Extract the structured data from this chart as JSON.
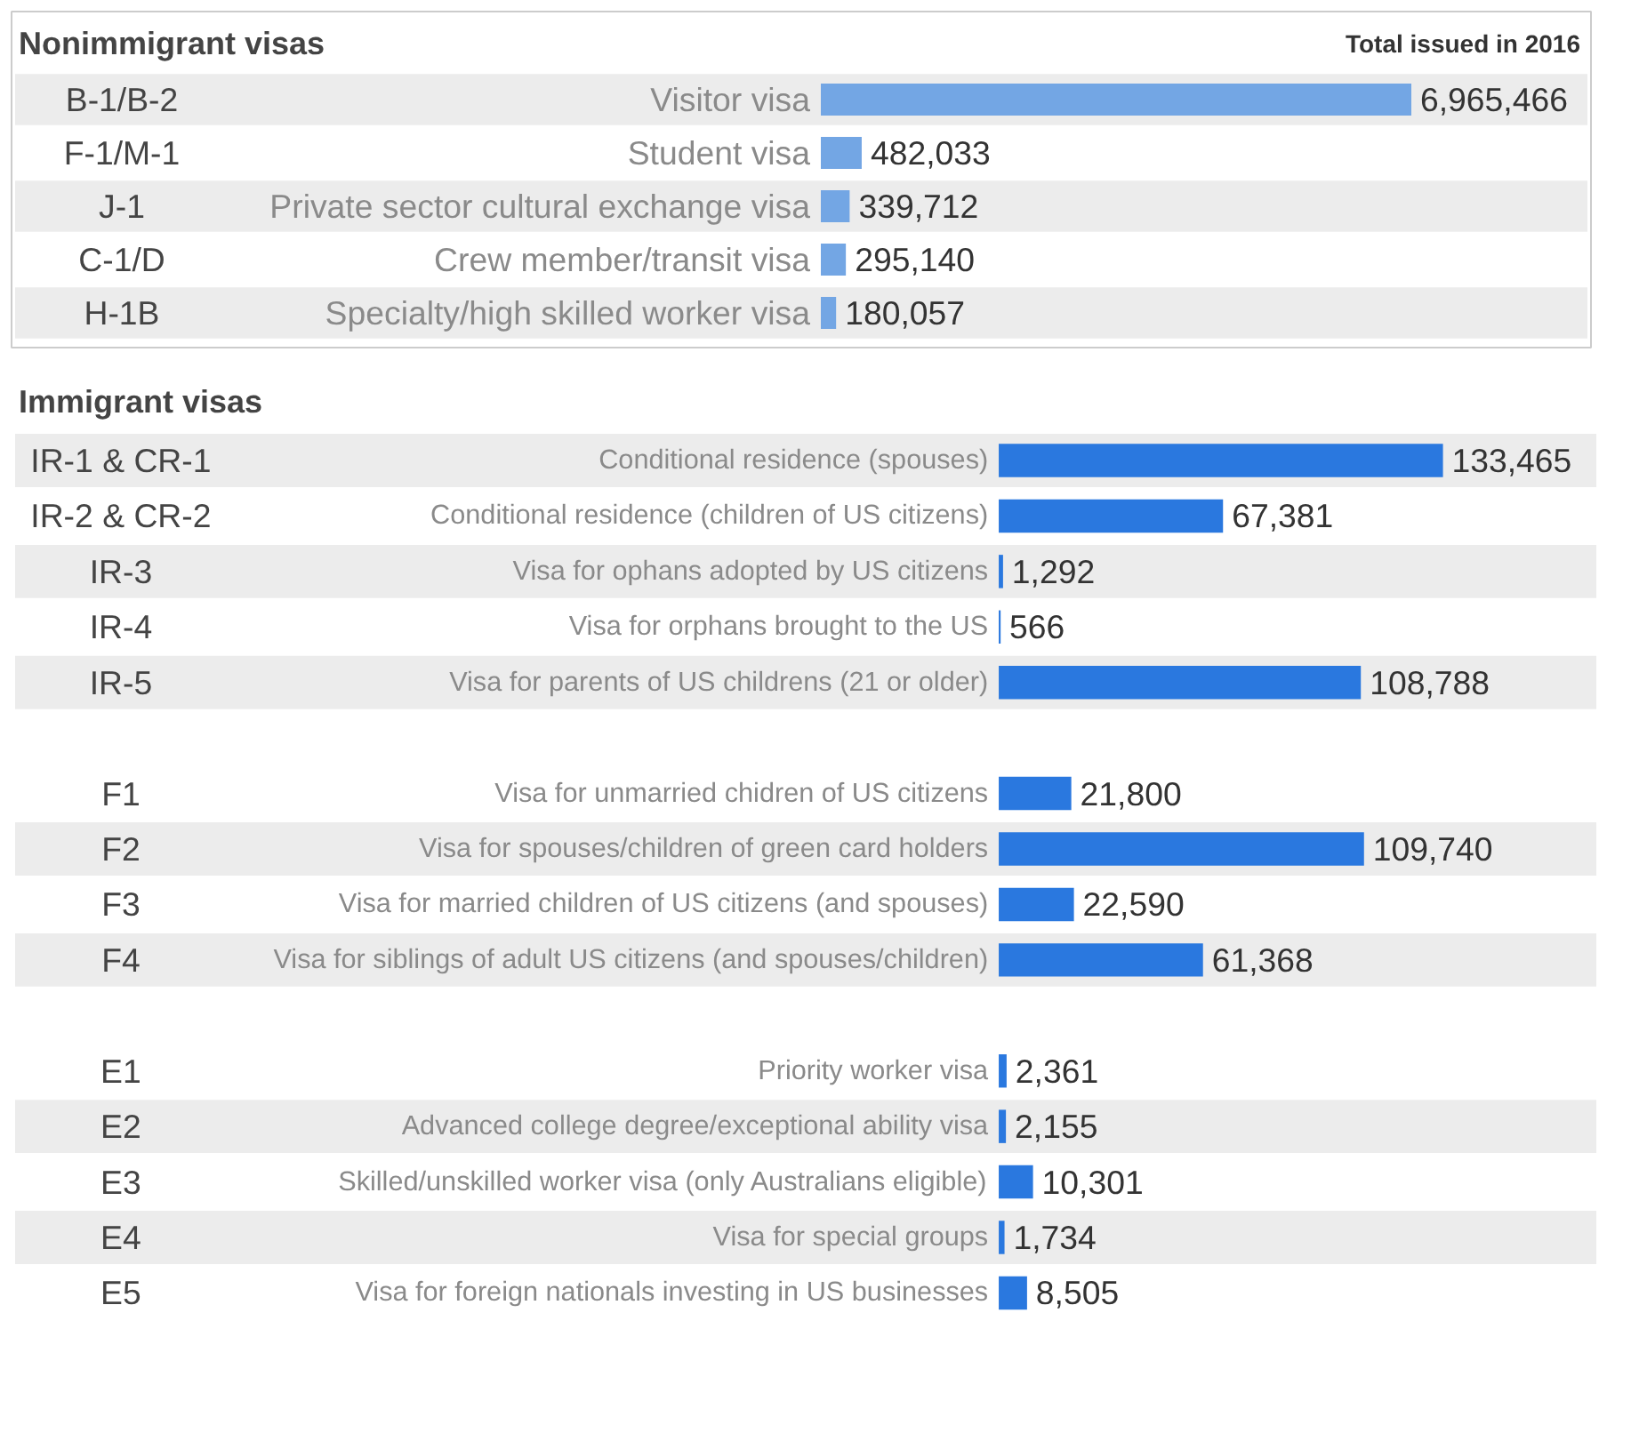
{
  "chart_data": [
    {
      "type": "bar",
      "orientation": "horizontal",
      "title": "Nonimmigrant visas",
      "subtitle": "Total issued in 2016",
      "categories": [
        "Visitor visa",
        "Student visa",
        "Private sector cultural exchange visa",
        "Crew member/transit visa",
        "Specialty/high skilled worker visa"
      ],
      "values": [
        6965466,
        482033,
        339712,
        295140,
        180057
      ],
      "color": "#73a6e4",
      "value_labels": [
        "6,965,466",
        "482,033",
        "339,712",
        "295,140",
        "180,057"
      ],
      "annotations": [
        "B-1/B-2",
        "F-1/M-1",
        "J-1",
        "C-1/D",
        "H-1B"
      ]
    },
    {
      "type": "bar",
      "orientation": "horizontal",
      "title": "Immigrant visas",
      "categories": [
        "Conditional residence (spouses)",
        "Conditional residence (children of US citizens)",
        "Visa for ophans adopted by US citizens",
        "Visa for orphans brought to the US",
        "Visa for parents of US childrens (21 or older)",
        null,
        "Visa for unmarried chidren of US citizens",
        "Visa for spouses/children of green card holders",
        "Visa for married children of US citizens (and spouses)",
        "Visa for siblings of adult US citizens (and spouses/children)",
        null,
        "Priority worker visa",
        "Advanced college degree/exceptional ability visa",
        "Skilled/unskilled worker visa (only Australians eligible)",
        "Visa for special groups",
        "Visa for foreign nationals investing in US businesses"
      ],
      "values": [
        133465,
        67381,
        1292,
        566,
        108788,
        null,
        21800,
        109740,
        22590,
        61368,
        null,
        2361,
        2155,
        10301,
        1734,
        8505
      ],
      "color": "#2a78df",
      "value_labels": [
        "133,465",
        "67,381",
        "1,292",
        "566",
        "108,788",
        null,
        "21,800",
        "109,740",
        "22,590",
        "61,368",
        null,
        "2,361",
        "2,155",
        "10,301",
        "1,734",
        "8,505"
      ],
      "annotations": [
        "IR-1 & CR-1",
        "IR-2 & CR-2",
        "IR-3",
        "IR-4",
        "IR-5",
        "F1",
        "F2",
        "F3",
        "F4",
        "E1",
        "E2",
        "E3",
        "E4",
        "E5"
      ]
    }
  ]
}
